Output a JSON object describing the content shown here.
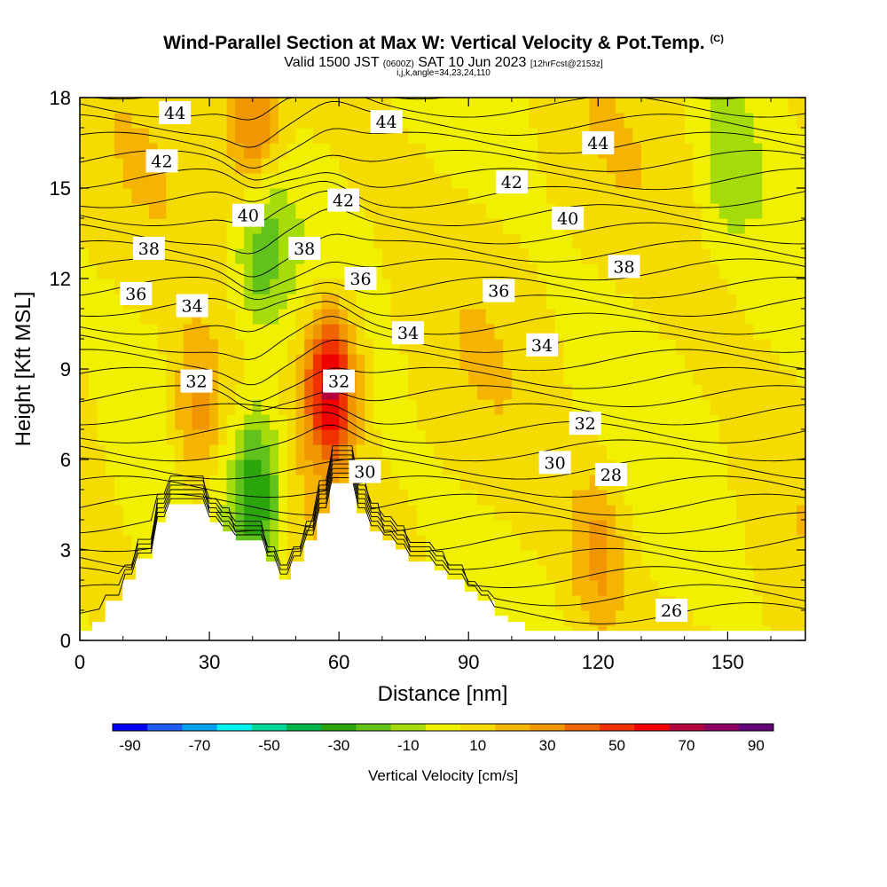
{
  "title": {
    "main": "Wind-Parallel Section at Max W: Vertical Velocity & Pot.Temp.",
    "copyright": "(C)",
    "valid_prefix": "Valid 1500 JST",
    "valid_utc": "(0600Z)",
    "valid_suffix": "SAT 10 Jun 2023",
    "forecast": "[12hrFcst@2153z]",
    "indices": "i,j,k,angle=34,23,24,110"
  },
  "colorbar": {
    "title": "Vertical Velocity [cm/s]",
    "ticks": [
      "-90",
      "-70",
      "-50",
      "-30",
      "-10",
      "10",
      "30",
      "50",
      "70",
      "90"
    ],
    "colors": [
      "#0000f0",
      "#1e5af0",
      "#00a0f0",
      "#00f0f0",
      "#00d89a",
      "#00b44c",
      "#2aa50a",
      "#60c21a",
      "#a6dc0a",
      "#f0f000",
      "#f5dc00",
      "#f5b400",
      "#f09600",
      "#f06400",
      "#f03200",
      "#f00000",
      "#b4003c",
      "#8c0064",
      "#640078"
    ]
  },
  "chart_data": {
    "type": "heatmap",
    "xlabel": "Distance [nm]",
    "ylabel": "Height [Kft MSL]",
    "xlim": [
      0,
      168
    ],
    "ylim": [
      0,
      18
    ],
    "x_ticks": [
      "0",
      "30",
      "60",
      "90",
      "120",
      "150"
    ],
    "y_ticks": [
      "0",
      "3",
      "6",
      "9",
      "12",
      "15",
      "18"
    ],
    "grid": false,
    "field": "vertical velocity (cm/s), filled contours every 10 cm/s",
    "field_range": [
      -90,
      90
    ],
    "features": [
      {
        "x": 58,
        "y": 8.5,
        "w": 65
      },
      {
        "x": 27,
        "y": 7.5,
        "w": 28
      },
      {
        "x": 41,
        "y": 5.0,
        "w": -40
      },
      {
        "x": 42,
        "y": 13.0,
        "w": -25
      },
      {
        "x": 40,
        "y": 17.0,
        "w": 35
      },
      {
        "x": 120,
        "y": 3.0,
        "w": 22
      },
      {
        "x": 150,
        "y": 16.0,
        "w": -15
      }
    ],
    "terrain_kft": [
      [
        0,
        0.3
      ],
      [
        3,
        0.6
      ],
      [
        6,
        1.3
      ],
      [
        10,
        2.0
      ],
      [
        13,
        2.7
      ],
      [
        17,
        3.9
      ],
      [
        20,
        4.5
      ],
      [
        27,
        4.5
      ],
      [
        30,
        3.9
      ],
      [
        33,
        3.6
      ],
      [
        36,
        3.3
      ],
      [
        39,
        3.3
      ],
      [
        43,
        2.6
      ],
      [
        46,
        2.0
      ],
      [
        49,
        2.6
      ],
      [
        52,
        3.3
      ],
      [
        55,
        4.2
      ],
      [
        58,
        5.2
      ],
      [
        62,
        5.2
      ],
      [
        64,
        4.2
      ],
      [
        67,
        3.6
      ],
      [
        70,
        3.3
      ],
      [
        73,
        3.0
      ],
      [
        76,
        2.6
      ],
      [
        82,
        2.3
      ],
      [
        85,
        2.0
      ],
      [
        89,
        1.6
      ],
      [
        92,
        1.3
      ],
      [
        96,
        0.8
      ],
      [
        99,
        0.6
      ],
      [
        103,
        0.3
      ],
      [
        168,
        0.3
      ]
    ],
    "contour_series": [
      {
        "name": "26",
        "label_at": [
          137,
          1.0
        ]
      },
      {
        "name": "28",
        "label_at": [
          123,
          5.5
        ]
      },
      {
        "name": "30",
        "label_at": [
          66,
          5.6
        ]
      },
      {
        "name": "30",
        "label_at": [
          110,
          5.9
        ]
      },
      {
        "name": "32",
        "label_at": [
          27,
          8.6
        ]
      },
      {
        "name": "32",
        "label_at": [
          60,
          8.6
        ]
      },
      {
        "name": "32",
        "label_at": [
          117,
          7.2
        ]
      },
      {
        "name": "34",
        "label_at": [
          26,
          11.1
        ]
      },
      {
        "name": "34",
        "label_at": [
          76,
          10.2
        ]
      },
      {
        "name": "34",
        "label_at": [
          107,
          9.8
        ]
      },
      {
        "name": "36",
        "label_at": [
          13,
          11.5
        ]
      },
      {
        "name": "36",
        "label_at": [
          65,
          12.0
        ]
      },
      {
        "name": "36",
        "label_at": [
          97,
          11.6
        ]
      },
      {
        "name": "38",
        "label_at": [
          16,
          13.0
        ]
      },
      {
        "name": "38",
        "label_at": [
          52,
          13.0
        ]
      },
      {
        "name": "38",
        "label_at": [
          126,
          12.4
        ]
      },
      {
        "name": "40",
        "label_at": [
          39,
          14.1
        ]
      },
      {
        "name": "40",
        "label_at": [
          113,
          14.0
        ]
      },
      {
        "name": "42",
        "label_at": [
          19,
          15.9
        ]
      },
      {
        "name": "42",
        "label_at": [
          61,
          14.6
        ]
      },
      {
        "name": "42",
        "label_at": [
          100,
          15.2
        ]
      },
      {
        "name": "44",
        "label_at": [
          22,
          17.5
        ]
      },
      {
        "name": "44",
        "label_at": [
          71,
          17.2
        ]
      },
      {
        "name": "44",
        "label_at": [
          120,
          16.5
        ]
      }
    ]
  }
}
